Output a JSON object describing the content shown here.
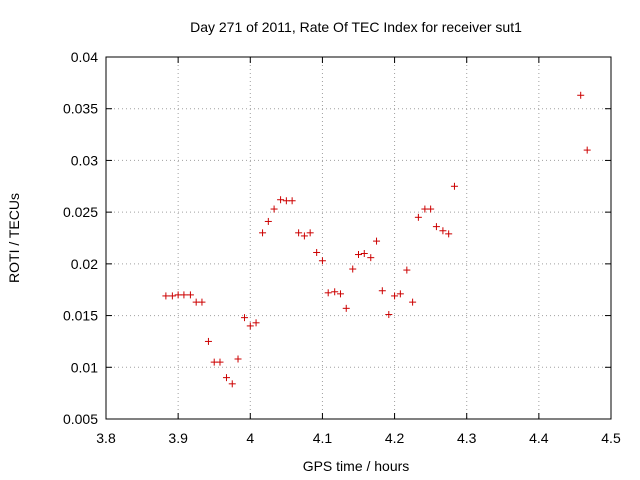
{
  "chart_data": {
    "type": "scatter",
    "title": "Day 271 of 2011, Rate Of TEC Index for receiver sut1",
    "xlabel": "GPS time / hours",
    "ylabel": "ROTI / TECUs",
    "xlim": [
      3.8,
      4.5
    ],
    "ylim": [
      0.005,
      0.04
    ],
    "xticks": [
      "3.8",
      "3.9",
      "4",
      "4.1",
      "4.2",
      "4.3",
      "4.4",
      "4.5"
    ],
    "yticks": [
      "0.005",
      "0.01",
      "0.015",
      "0.02",
      "0.025",
      "0.03",
      "0.035",
      "0.04"
    ],
    "grid": true,
    "marker": "+",
    "color": "#cc0000",
    "series": [
      {
        "name": "sut1",
        "x": [
          3.883,
          3.892,
          3.9,
          3.908,
          3.917,
          3.925,
          3.933,
          3.942,
          3.95,
          3.958,
          3.967,
          3.975,
          3.983,
          3.992,
          4.0,
          4.008,
          4.017,
          4.025,
          4.033,
          4.042,
          4.05,
          4.058,
          4.067,
          4.075,
          4.083,
          4.092,
          4.1,
          4.108,
          4.117,
          4.125,
          4.133,
          4.142,
          4.15,
          4.158,
          4.167,
          4.175,
          4.183,
          4.192,
          4.2,
          4.208,
          4.217,
          4.225,
          4.233,
          4.242,
          4.25,
          4.258,
          4.267,
          4.275,
          4.283,
          4.458,
          4.467
        ],
        "y": [
          0.0169,
          0.0169,
          0.017,
          0.017,
          0.017,
          0.0163,
          0.0163,
          0.0125,
          0.0105,
          0.0105,
          0.009,
          0.0084,
          0.0108,
          0.0148,
          0.014,
          0.0143,
          0.023,
          0.0241,
          0.0253,
          0.0262,
          0.0261,
          0.0261,
          0.023,
          0.0227,
          0.023,
          0.0211,
          0.0203,
          0.0172,
          0.0173,
          0.0171,
          0.0157,
          0.0195,
          0.0209,
          0.021,
          0.0206,
          0.0222,
          0.0174,
          0.0151,
          0.0169,
          0.0171,
          0.0194,
          0.0163,
          0.0245,
          0.0253,
          0.0253,
          0.0236,
          0.0232,
          0.0229,
          0.0275,
          0.0363,
          0.031
        ]
      }
    ]
  }
}
